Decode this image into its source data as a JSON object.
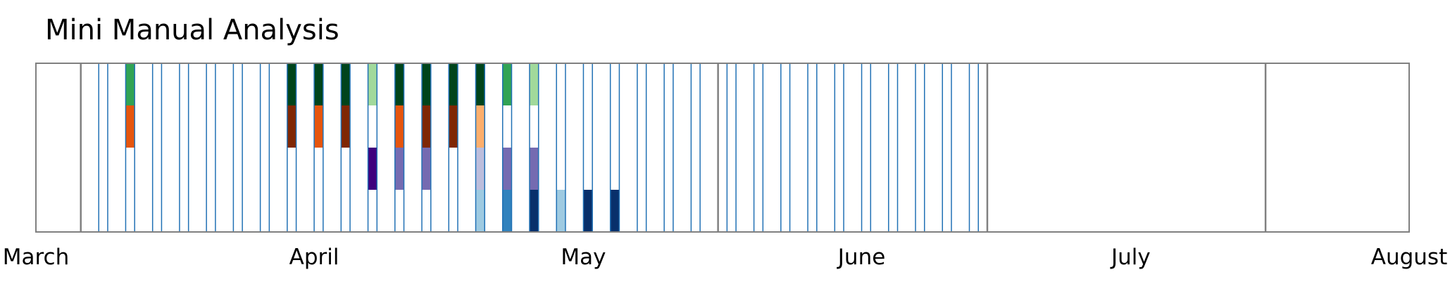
{
  "chart_data": {
    "type": "heatmap",
    "title": "Mini Manual Analysis",
    "x_range": [
      "2021-03-01",
      "2021-08-01"
    ],
    "x_tick_labels": [
      "March",
      "April",
      "May",
      "June",
      "July",
      "August"
    ],
    "x_tick_dates": [
      "2021-03-01",
      "2021-04-01",
      "2021-05-01",
      "2021-06-01",
      "2021-07-01",
      "2021-08-01"
    ],
    "rows": 4,
    "boundary_lines": [
      "2021-03-06",
      "2021-05-16",
      "2021-06-15",
      "2021-07-16"
    ],
    "day_markers": [
      "2021-03-08",
      "2021-03-09",
      "2021-03-11",
      "2021-03-12",
      "2021-03-14",
      "2021-03-15",
      "2021-03-17",
      "2021-03-18",
      "2021-03-20",
      "2021-03-21",
      "2021-03-23",
      "2021-03-24",
      "2021-03-26",
      "2021-03-27",
      "2021-03-29",
      "2021-03-30",
      "2021-04-01",
      "2021-04-02",
      "2021-04-04",
      "2021-04-05",
      "2021-04-07",
      "2021-04-08",
      "2021-04-10",
      "2021-04-11",
      "2021-04-13",
      "2021-04-14",
      "2021-04-16",
      "2021-04-17",
      "2021-04-19",
      "2021-04-20",
      "2021-04-22",
      "2021-04-23",
      "2021-04-25",
      "2021-04-26",
      "2021-04-28",
      "2021-04-29",
      "2021-05-01",
      "2021-05-02",
      "2021-05-04",
      "2021-05-05",
      "2021-05-07",
      "2021-05-08",
      "2021-05-10",
      "2021-05-11",
      "2021-05-13",
      "2021-05-14",
      "2021-05-17",
      "2021-05-18",
      "2021-05-20",
      "2021-05-21",
      "2021-05-23",
      "2021-05-24",
      "2021-05-26",
      "2021-05-27",
      "2021-05-29",
      "2021-05-30",
      "2021-06-01",
      "2021-06-02",
      "2021-06-04",
      "2021-06-05",
      "2021-06-07",
      "2021-06-08",
      "2021-06-10",
      "2021-06-11",
      "2021-06-13",
      "2021-06-14"
    ],
    "cells": [
      {
        "date": "2021-03-11",
        "row": 0,
        "color": "#31a354"
      },
      {
        "date": "2021-03-11",
        "row": 1,
        "color": "#e6550d"
      },
      {
        "date": "2021-03-29",
        "row": 0,
        "color": "#00441b"
      },
      {
        "date": "2021-03-29",
        "row": 1,
        "color": "#7f2704"
      },
      {
        "date": "2021-04-01",
        "row": 0,
        "color": "#00441b"
      },
      {
        "date": "2021-04-01",
        "row": 1,
        "color": "#e6550d"
      },
      {
        "date": "2021-04-04",
        "row": 0,
        "color": "#00441b"
      },
      {
        "date": "2021-04-04",
        "row": 1,
        "color": "#7f2704"
      },
      {
        "date": "2021-04-07",
        "row": 0,
        "color": "#a1d99b"
      },
      {
        "date": "2021-04-07",
        "row": 2,
        "color": "#3f007d"
      },
      {
        "date": "2021-04-10",
        "row": 0,
        "color": "#00441b"
      },
      {
        "date": "2021-04-10",
        "row": 1,
        "color": "#e6550d"
      },
      {
        "date": "2021-04-10",
        "row": 2,
        "color": "#756bb1"
      },
      {
        "date": "2021-04-13",
        "row": 0,
        "color": "#00441b"
      },
      {
        "date": "2021-04-13",
        "row": 1,
        "color": "#7f2704"
      },
      {
        "date": "2021-04-13",
        "row": 2,
        "color": "#756bb1"
      },
      {
        "date": "2021-04-16",
        "row": 0,
        "color": "#00441b"
      },
      {
        "date": "2021-04-16",
        "row": 1,
        "color": "#7f2704"
      },
      {
        "date": "2021-04-19",
        "row": 0,
        "color": "#00441b"
      },
      {
        "date": "2021-04-19",
        "row": 1,
        "color": "#fdae6b"
      },
      {
        "date": "2021-04-19",
        "row": 2,
        "color": "#bcbddc"
      },
      {
        "date": "2021-04-19",
        "row": 3,
        "color": "#9ecae1"
      },
      {
        "date": "2021-04-22",
        "row": 0,
        "color": "#31a354"
      },
      {
        "date": "2021-04-22",
        "row": 2,
        "color": "#756bb1"
      },
      {
        "date": "2021-04-22",
        "row": 3,
        "color": "#3182bd"
      },
      {
        "date": "2021-04-25",
        "row": 0,
        "color": "#a1d99b"
      },
      {
        "date": "2021-04-25",
        "row": 2,
        "color": "#756bb1"
      },
      {
        "date": "2021-04-25",
        "row": 3,
        "color": "#08306b"
      },
      {
        "date": "2021-04-28",
        "row": 3,
        "color": "#9ecae1"
      },
      {
        "date": "2021-05-01",
        "row": 3,
        "color": "#08306b"
      },
      {
        "date": "2021-05-04",
        "row": 3,
        "color": "#08306b"
      }
    ],
    "colors": {
      "marker": "#2171b5",
      "boundary": "#808080",
      "frame": "#808080"
    },
    "grid": false,
    "legend": "none"
  }
}
